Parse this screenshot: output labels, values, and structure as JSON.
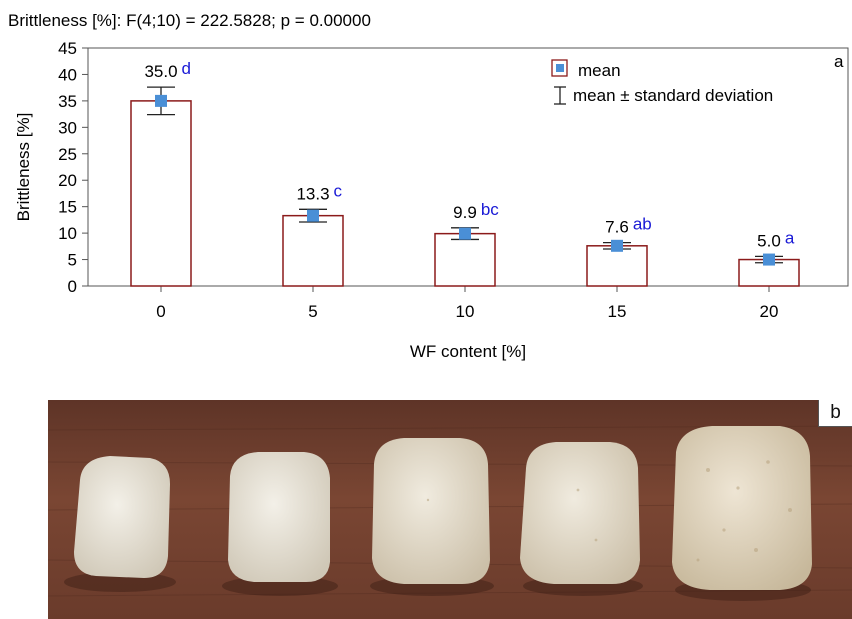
{
  "chart_data": {
    "type": "bar",
    "title": "Brittleness [%]: F(4;10) = 222.5828; p = 0.00000",
    "xlabel": "WF content [%]",
    "ylabel": "Brittleness [%]",
    "categories": [
      "0",
      "5",
      "10",
      "15",
      "20"
    ],
    "values": [
      35.0,
      13.3,
      9.9,
      7.6,
      5.0
    ],
    "sd": [
      2.6,
      1.2,
      1.1,
      0.6,
      0.6
    ],
    "value_labels": [
      "35.0",
      "13.3",
      "9.9",
      "7.6",
      "5.0"
    ],
    "group_letters": [
      "d",
      "c",
      "bc",
      "ab",
      "a"
    ],
    "ylim": [
      0,
      45
    ],
    "yticks": [
      0,
      5,
      10,
      15,
      20,
      25,
      30,
      35,
      40,
      45
    ],
    "legend": {
      "position": "top-right",
      "entries": [
        "mean",
        "mean ± standard deviation"
      ]
    },
    "panel_label": "a",
    "colors": {
      "bar_edge": "#8b1a1a",
      "mean_marker": "#4a8fd6",
      "letters": "#1a1ad6"
    }
  },
  "photo": {
    "panel_label": "b"
  }
}
